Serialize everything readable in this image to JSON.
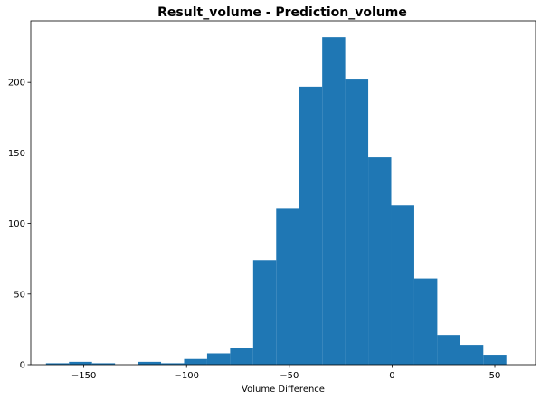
{
  "chart_data": {
    "type": "bar",
    "title": "Result_volume - Prediction_volume",
    "xlabel": "Volume Difference",
    "ylabel": "",
    "bar_color": "#1f77b4",
    "grid": false,
    "legend": "none",
    "xlim": [
      -175.8,
      69.8
    ],
    "ylim": [
      0,
      243.6
    ],
    "xticks": [
      -150,
      -100,
      -50,
      0,
      50
    ],
    "xtick_labels": [
      "−150",
      "−100",
      "−50",
      "0",
      "50"
    ],
    "yticks": [
      0,
      50,
      100,
      150,
      200
    ],
    "ytick_labels": [
      "0",
      "50",
      "100",
      "150",
      "200"
    ],
    "bins": [
      {
        "x0": -168.4,
        "x1": -157.2,
        "value": 1
      },
      {
        "x0": -157.2,
        "x1": -146.0,
        "value": 2
      },
      {
        "x0": -146.0,
        "x1": -134.8,
        "value": 1
      },
      {
        "x0": -134.8,
        "x1": -123.6,
        "value": 0
      },
      {
        "x0": -123.6,
        "x1": -112.4,
        "value": 2
      },
      {
        "x0": -112.4,
        "x1": -101.2,
        "value": 1
      },
      {
        "x0": -101.2,
        "x1": -90.0,
        "value": 4
      },
      {
        "x0": -90.0,
        "x1": -78.8,
        "value": 8
      },
      {
        "x0": -78.8,
        "x1": -67.6,
        "value": 12
      },
      {
        "x0": -67.6,
        "x1": -56.4,
        "value": 74
      },
      {
        "x0": -56.4,
        "x1": -45.2,
        "value": 111
      },
      {
        "x0": -45.2,
        "x1": -34.0,
        "value": 197
      },
      {
        "x0": -34.0,
        "x1": -22.8,
        "value": 232
      },
      {
        "x0": -22.8,
        "x1": -11.6,
        "value": 202
      },
      {
        "x0": -11.6,
        "x1": -0.4,
        "value": 147
      },
      {
        "x0": -0.4,
        "x1": 10.8,
        "value": 113
      },
      {
        "x0": 10.8,
        "x1": 22.0,
        "value": 61
      },
      {
        "x0": 22.0,
        "x1": 33.2,
        "value": 21
      },
      {
        "x0": 33.2,
        "x1": 44.4,
        "value": 14
      },
      {
        "x0": 44.4,
        "x1": 55.6,
        "value": 7
      }
    ]
  }
}
